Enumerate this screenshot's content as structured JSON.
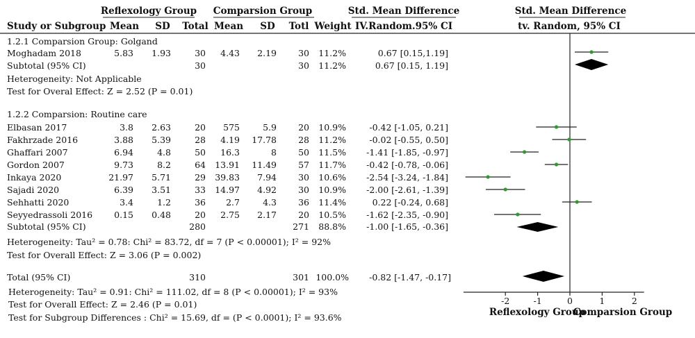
{
  "header": {
    "group_left": "Reflexology Group",
    "group_right": "Comparsion Group",
    "smd_left": "Std. Mean Difference",
    "smd_right": "Std. Mean Difference",
    "columns": [
      "Study or Subgroup",
      "Mean",
      "SD",
      "Total",
      "Mean",
      "SD",
      "Totl",
      "Weight",
      "IV.Random.95% CI",
      "tv. Random, 95% CI"
    ]
  },
  "subgroups": [
    {
      "title": "1.2.1 Comparsion Group: Golgand",
      "studies": [
        {
          "name": "Moghadam 2018",
          "r_mean": "5.83",
          "r_sd": "1.93",
          "r_total": "30",
          "c_mean": "4.43",
          "c_sd": "2.19",
          "c_total": "30",
          "weight": "11.2%",
          "ci_text": "0.67 [0.15,1.19]"
        }
      ],
      "subtotal": {
        "label": "Subtotal (95% CI)",
        "r_total": "30",
        "c_total": "30",
        "weight": "11.2%",
        "ci_text": "0.67 [0.15, 1.19]"
      },
      "heterogeneity": "Heterogeneity: Not Applicable",
      "overall": "Test for Overal Effect: Z = 2.52 (P = 0.01)"
    },
    {
      "title": "1.2.2 Comparsion: Routine care",
      "studies": [
        {
          "name": "Elbasan 2017",
          "r_mean": "3.8",
          "r_sd": "2.63",
          "r_total": "20",
          "c_mean": "575",
          "c_sd": "5.9",
          "c_total": "20",
          "weight": "10.9%",
          "ci_text": "-0.42 [-1.05, 0.21]"
        },
        {
          "name": "Fakhrzade 2016",
          "r_mean": "3.88",
          "r_sd": "5.39",
          "r_total": "28",
          "c_mean": "4.19",
          "c_sd": "17.78",
          "c_total": "28",
          "weight": "11.2%",
          "ci_text": "-0.02 [-0.55, 0.50]"
        },
        {
          "name": "Ghaffari 2007",
          "r_mean": "6.94",
          "r_sd": "4.8",
          "r_total": "50",
          "c_mean": "16.3",
          "c_sd": "8",
          "c_total": "50",
          "weight": "11.5%",
          "ci_text": "-1.41 [-1.85, -0.97]"
        },
        {
          "name": "Gordon 2007",
          "r_mean": "9.73",
          "r_sd": "8.2",
          "r_total": "64",
          "c_mean": "13.91",
          "c_sd": "11.49",
          "c_total": "57",
          "weight": "11.7%",
          "ci_text": "-0.42 [-0.78, -0.06]"
        },
        {
          "name": "Inkaya 2020",
          "r_mean": "21.97",
          "r_sd": "5.71",
          "r_total": "29",
          "c_mean": "39.83",
          "c_sd": "7.94",
          "c_total": "30",
          "weight": "10.6%",
          "ci_text": "-2.54 [-3.24, -1.84]"
        },
        {
          "name": "Sajadi 2020",
          "r_mean": "6.39",
          "r_sd": "3.51",
          "r_total": "33",
          "c_mean": "14.97",
          "c_sd": "4.92",
          "c_total": "30",
          "weight": "10.9%",
          "ci_text": "-2.00 [-2.61, -1.39]"
        },
        {
          "name": "Sehhatti 2020",
          "r_mean": "3.4",
          "r_sd": "1.2",
          "r_total": "36",
          "c_mean": "2.7",
          "c_sd": "4.3",
          "c_total": "36",
          "weight": "11.4%",
          "ci_text": "0.22 [-0.24, 0.68]"
        },
        {
          "name": "Seyyedrassoli 2016",
          "r_mean": "0.15",
          "r_sd": "0.48",
          "r_total": "20",
          "c_mean": "2.75",
          "c_sd": "2.17",
          "c_total": "20",
          "weight": "10.5%",
          "ci_text": "-1.62 [-2.35, -0.90]"
        }
      ],
      "subtotal": {
        "label": "Subtotal (95% CI)",
        "r_total": "280",
        "c_total": "271",
        "weight": "88.8%",
        "ci_text": "-1.00 [-1.65, -0.36]"
      },
      "heterogeneity": "Heterogeneity: Tau² = 0.78: Chi² = 83.72, df = 7 (P < 0.00001); I² = 92%",
      "overall": "Test for Overall Effect: Z = 3.06 (P = 0.002)"
    }
  ],
  "total": {
    "label": "Total (95% CI)",
    "r_total": "310",
    "c_total": "301",
    "weight": "100.0%",
    "ci_text": "-0.82 [-1.47, -0.17]",
    "heterogeneity": "Heterogeneity: Tau² = 0.91: Chi² = 111.02, df = 8 (P < 0.00001); I² = 93%",
    "overall": "Test for Overall Effect: Z = 2.46 (P = 0.01)",
    "subgroup_diff": "Test for Subgroup Differences : Chi² = 15.69, df = (P < 0.0001); I² = 93.6%"
  },
  "axis": {
    "ticks": [
      "-2",
      "-1",
      "0",
      "1",
      "2"
    ],
    "label_left": "Reflexology Group",
    "label_right": "Comparsion Group"
  },
  "colors": {
    "point": "#2e9a2e",
    "line": "#222222",
    "diamond": "#000000"
  },
  "chart_data": {
    "type": "forest",
    "xlim": [
      -3.3,
      2.3
    ],
    "zero_line": 0,
    "studies": [
      {
        "name": "Moghadam 2018",
        "est": 0.67,
        "lo": 0.15,
        "hi": 1.19
      },
      {
        "name": "Elbasan 2017",
        "est": -0.42,
        "lo": -1.05,
        "hi": 0.21
      },
      {
        "name": "Fakhrzade 2016",
        "est": -0.02,
        "lo": -0.55,
        "hi": 0.5
      },
      {
        "name": "Ghaffari 2007",
        "est": -1.41,
        "lo": -1.85,
        "hi": -0.97
      },
      {
        "name": "Gordon 2007",
        "est": -0.42,
        "lo": -0.78,
        "hi": -0.06
      },
      {
        "name": "Inkaya 2020",
        "est": -2.54,
        "lo": -3.24,
        "hi": -1.84
      },
      {
        "name": "Sajadi 2020",
        "est": -2.0,
        "lo": -2.61,
        "hi": -1.39
      },
      {
        "name": "Sehhatti 2020",
        "est": 0.22,
        "lo": -0.24,
        "hi": 0.68
      },
      {
        "name": "Seyyedrassoli 2016",
        "est": -1.62,
        "lo": -2.35,
        "hi": -0.9
      }
    ],
    "summaries": [
      {
        "name": "Subtotal 1.2.1",
        "est": 0.67,
        "lo": 0.15,
        "hi": 1.19
      },
      {
        "name": "Subtotal 1.2.2",
        "est": -1.0,
        "lo": -1.65,
        "hi": -0.36
      },
      {
        "name": "Total",
        "est": -0.82,
        "lo": -1.47,
        "hi": -0.17
      }
    ]
  }
}
